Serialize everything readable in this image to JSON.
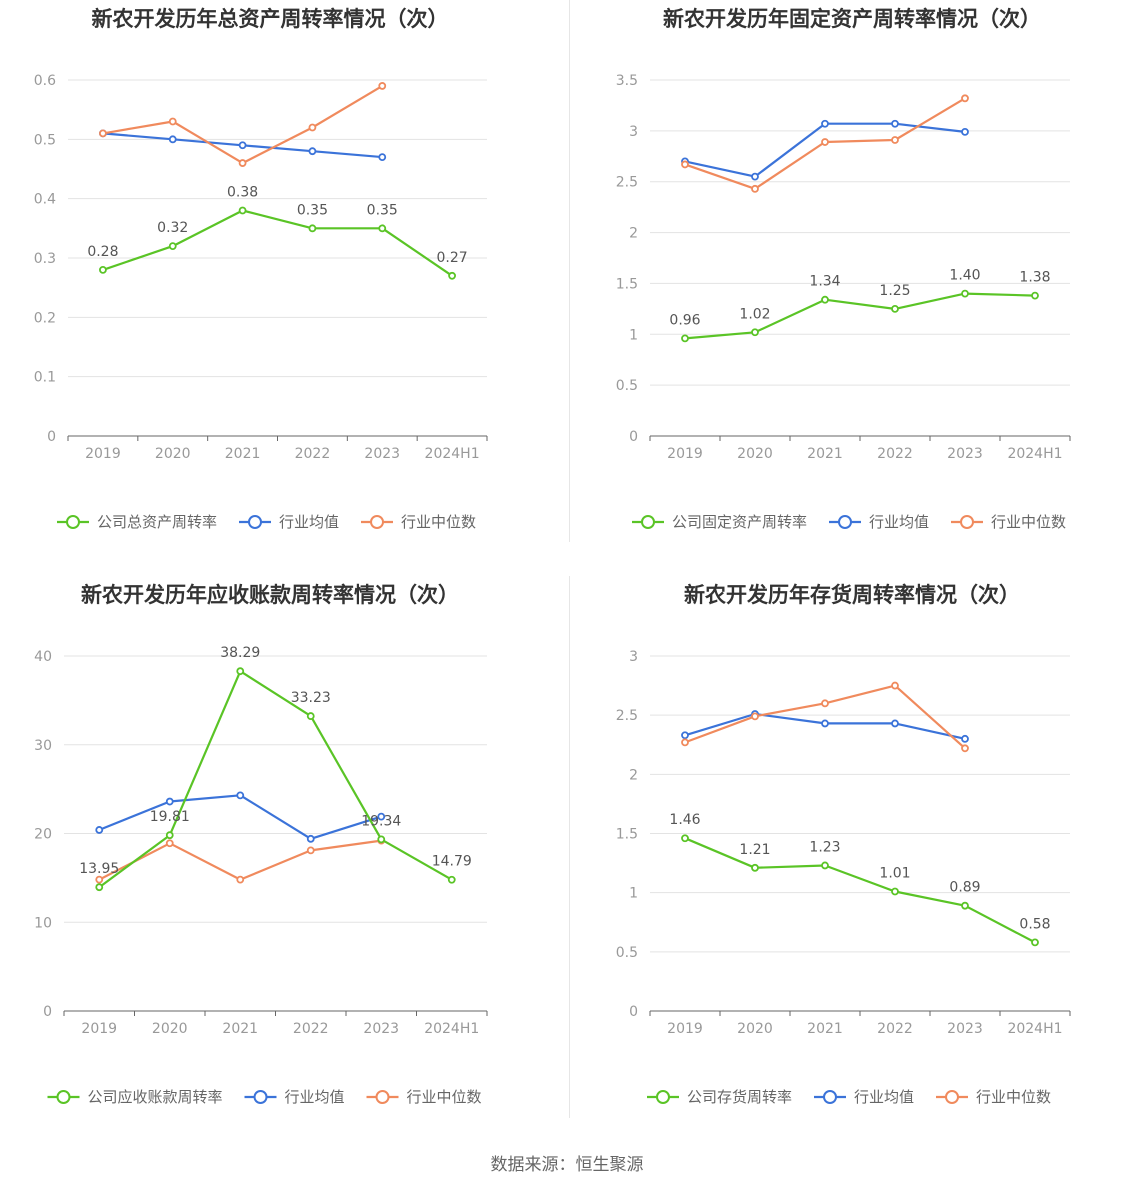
{
  "colors": {
    "company": "#5ac426",
    "average": "#3b73d9",
    "median": "#f08a5d"
  },
  "source": "数据来源：恒生聚源",
  "chart_data": [
    {
      "type": "line",
      "title": "新农开发历年总资产周转率情况（次）",
      "categories": [
        "2019",
        "2020",
        "2021",
        "2022",
        "2023",
        "2024H1"
      ],
      "ylim": [
        0,
        0.6
      ],
      "yticks": [
        "0",
        "0.1",
        "0.2",
        "0.3",
        "0.4",
        "0.5",
        "0.6"
      ],
      "series": [
        {
          "name": "公司总资产周转率",
          "values": [
            0.28,
            0.32,
            0.38,
            0.35,
            0.35,
            0.27
          ],
          "labels": [
            "0.28",
            "0.32",
            "0.38",
            "0.35",
            "0.35",
            "0.27"
          ]
        },
        {
          "name": "行业均值",
          "values": [
            0.51,
            0.5,
            0.49,
            0.48,
            0.47,
            null
          ]
        },
        {
          "name": "行业中位数",
          "values": [
            0.51,
            0.53,
            0.46,
            0.52,
            0.59,
            null
          ]
        }
      ]
    },
    {
      "type": "line",
      "title": "新农开发历年固定资产周转率情况（次）",
      "categories": [
        "2019",
        "2020",
        "2021",
        "2022",
        "2023",
        "2024H1"
      ],
      "ylim": [
        0,
        3.5
      ],
      "yticks": [
        "0",
        "0.5",
        "1",
        "1.5",
        "2",
        "2.5",
        "3",
        "3.5"
      ],
      "series": [
        {
          "name": "公司固定资产周转率",
          "values": [
            0.96,
            1.02,
            1.34,
            1.25,
            1.4,
            1.38
          ],
          "labels": [
            "0.96",
            "1.02",
            "1.34",
            "1.25",
            "1.40",
            "1.38"
          ]
        },
        {
          "name": "行业均值",
          "values": [
            2.7,
            2.55,
            3.07,
            3.07,
            2.99,
            null
          ]
        },
        {
          "name": "行业中位数",
          "values": [
            2.67,
            2.43,
            2.89,
            2.91,
            3.32,
            null
          ]
        }
      ]
    },
    {
      "type": "line",
      "title": "新农开发历年应收账款周转率情况（次）",
      "categories": [
        "2019",
        "2020",
        "2021",
        "2022",
        "2023",
        "2024H1"
      ],
      "ylim": [
        0,
        40
      ],
      "yticks": [
        "0",
        "10",
        "20",
        "30",
        "40"
      ],
      "series": [
        {
          "name": "公司应收账款周转率",
          "values": [
            13.95,
            19.81,
            38.29,
            33.23,
            19.34,
            14.79
          ],
          "labels": [
            "13.95",
            "19.81",
            "38.29",
            "33.23",
            "19.34",
            "14.79"
          ]
        },
        {
          "name": "行业均值",
          "values": [
            20.4,
            23.6,
            24.3,
            19.4,
            21.9,
            null
          ]
        },
        {
          "name": "行业中位数",
          "values": [
            14.8,
            18.9,
            14.8,
            18.1,
            19.2,
            null
          ]
        }
      ]
    },
    {
      "type": "line",
      "title": "新农开发历年存货周转率情况（次）",
      "categories": [
        "2019",
        "2020",
        "2021",
        "2022",
        "2023",
        "2024H1"
      ],
      "ylim": [
        0,
        3
      ],
      "yticks": [
        "0",
        "0.5",
        "1",
        "1.5",
        "2",
        "2.5",
        "3"
      ],
      "series": [
        {
          "name": "公司存货周转率",
          "values": [
            1.46,
            1.21,
            1.23,
            1.01,
            0.89,
            0.58
          ],
          "labels": [
            "1.46",
            "1.21",
            "1.23",
            "1.01",
            "0.89",
            "0.58"
          ]
        },
        {
          "name": "行业均值",
          "values": [
            2.33,
            2.51,
            2.43,
            2.43,
            2.3,
            null
          ]
        },
        {
          "name": "行业中位数",
          "values": [
            2.27,
            2.49,
            2.6,
            2.75,
            2.22,
            null
          ]
        }
      ]
    }
  ]
}
